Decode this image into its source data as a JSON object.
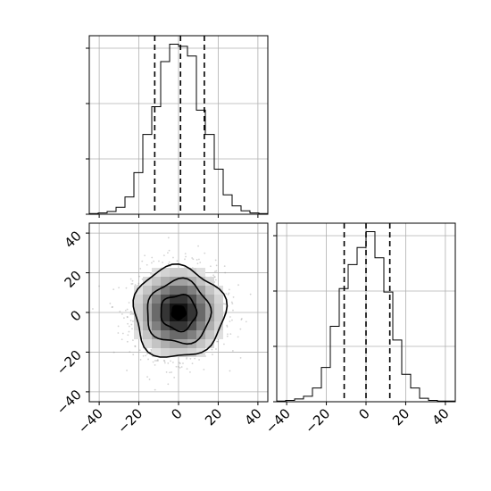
{
  "chart_data": [
    {
      "type": "histogram",
      "panel": "marginal-x",
      "grid": true,
      "xlim": [
        -45,
        45
      ],
      "bin_edges": [
        -45,
        -40.5,
        -36,
        -31.5,
        -27,
        -22.5,
        -18,
        -13.5,
        -9,
        -4.5,
        0,
        4.5,
        9,
        13.5,
        18,
        22.5,
        27,
        31.5,
        36,
        40.5,
        45
      ],
      "counts": [
        1,
        2,
        4,
        10,
        25,
        60,
        115,
        155,
        220,
        245,
        242,
        228,
        150,
        115,
        65,
        28,
        12,
        5,
        2,
        1
      ],
      "quantile_lines": [
        -12,
        1,
        13
      ]
    },
    {
      "type": "heatmap",
      "panel": "joint",
      "grid": true,
      "xlim": [
        -45,
        45
      ],
      "ylim": [
        -45,
        45
      ],
      "x_ticks": [
        -40,
        -20,
        0,
        20,
        40
      ],
      "y_ticks": [
        -40,
        -20,
        0,
        20,
        40
      ],
      "x_tick_labels": [
        "−40",
        "−20",
        "0",
        "20",
        "40"
      ],
      "y_tick_labels": [
        "−40",
        "−20",
        "0",
        "20",
        "40"
      ],
      "contour_radii": [
        23,
        16,
        9,
        3.5
      ],
      "center": [
        0,
        0
      ]
    },
    {
      "type": "histogram",
      "panel": "marginal-y",
      "grid": true,
      "xlim": [
        -45,
        45
      ],
      "bin_edges": [
        -45,
        -40.5,
        -36,
        -31.5,
        -27,
        -22.5,
        -18,
        -13.5,
        -9,
        -4.5,
        0,
        4.5,
        9,
        13.5,
        18,
        22.5,
        27,
        31.5,
        36,
        40.5,
        45
      ],
      "counts": [
        1,
        2,
        4,
        8,
        20,
        50,
        110,
        165,
        200,
        225,
        248,
        210,
        160,
        90,
        40,
        20,
        5,
        2,
        1,
        1
      ],
      "quantile_lines": [
        -11,
        0,
        12
      ],
      "x_ticks": [
        -40,
        -20,
        0,
        20,
        40
      ],
      "x_tick_labels": [
        "−40",
        "−20",
        "0",
        "20",
        "40"
      ]
    }
  ]
}
